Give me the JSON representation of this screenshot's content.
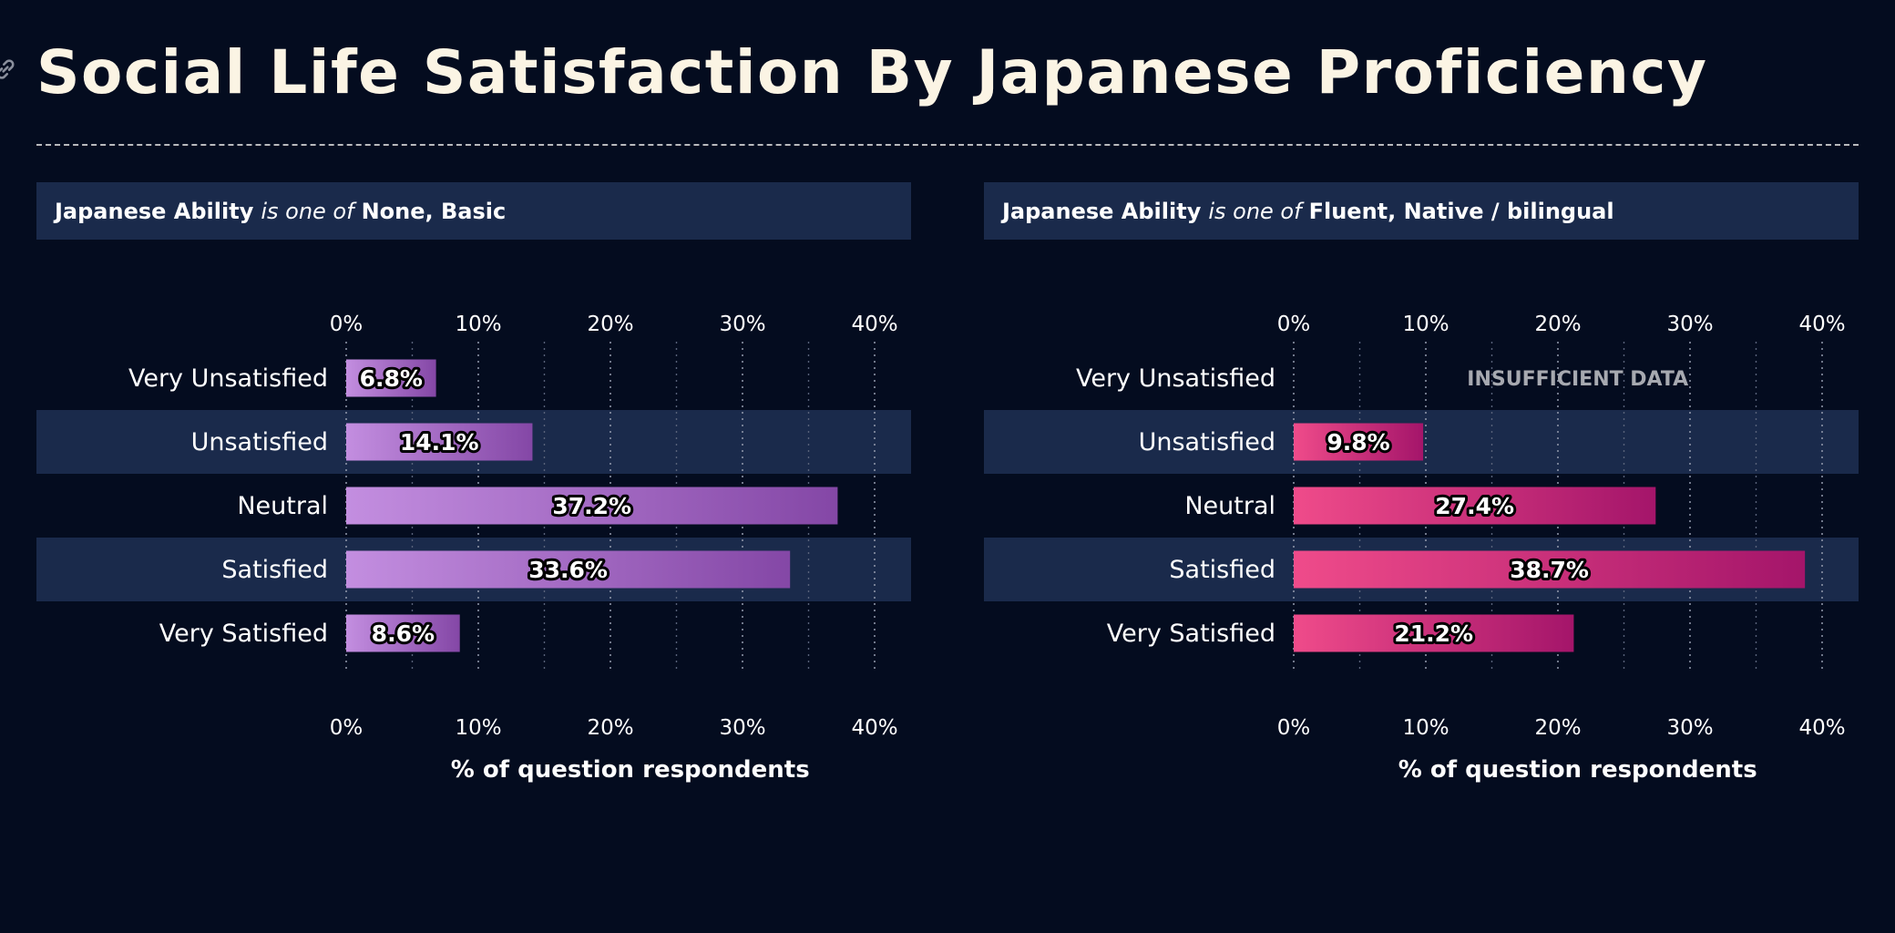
{
  "title": "Social Life Satisfaction By Japanese Proficiency",
  "icons": {
    "link": "link-icon"
  },
  "colors": {
    "background": "#040c1f",
    "band": "#1a2a4b",
    "title": "#fbf4e4",
    "left_bar_start": "#c38ee0",
    "left_bar_end": "#8447a6",
    "right_bar_start": "#ef4b8a",
    "right_bar_end": "#a4156a"
  },
  "panels": [
    {
      "filter": {
        "field": "Japanese Ability",
        "op": "is one of",
        "values": "None, Basic"
      },
      "insufficient_label": ""
    },
    {
      "filter": {
        "field": "Japanese Ability",
        "op": "is one of",
        "values": "Fluent, Native / bilingual"
      },
      "insufficient_label": "INSUFFICIENT DATA"
    }
  ],
  "chart_data": [
    {
      "type": "bar",
      "orientation": "horizontal",
      "categories": [
        "Very Unsatisfied",
        "Unsatisfied",
        "Neutral",
        "Satisfied",
        "Very Satisfied"
      ],
      "values": [
        6.8,
        14.1,
        37.2,
        33.6,
        8.6
      ],
      "value_labels": [
        "6.8%",
        "14.1%",
        "37.2%",
        "33.6%",
        "8.6%"
      ],
      "xlabel": "% of question respondents",
      "xlim": [
        0,
        43
      ],
      "ticks": [
        0,
        10,
        20,
        30,
        40
      ],
      "tick_labels": [
        "0%",
        "10%",
        "20%",
        "30%",
        "40%"
      ],
      "grid": true,
      "palette": [
        "#c38ee0",
        "#8447a6"
      ]
    },
    {
      "type": "bar",
      "orientation": "horizontal",
      "categories": [
        "Very Unsatisfied",
        "Unsatisfied",
        "Neutral",
        "Satisfied",
        "Very Satisfied"
      ],
      "values": [
        null,
        9.8,
        27.4,
        38.7,
        21.2
      ],
      "value_labels": [
        "",
        "9.8%",
        "27.4%",
        "38.7%",
        "21.2%"
      ],
      "xlabel": "% of question respondents",
      "xlim": [
        0,
        43
      ],
      "ticks": [
        0,
        10,
        20,
        30,
        40
      ],
      "tick_labels": [
        "0%",
        "10%",
        "20%",
        "30%",
        "40%"
      ],
      "grid": true,
      "palette": [
        "#ef4b8a",
        "#a4156a"
      ]
    }
  ]
}
